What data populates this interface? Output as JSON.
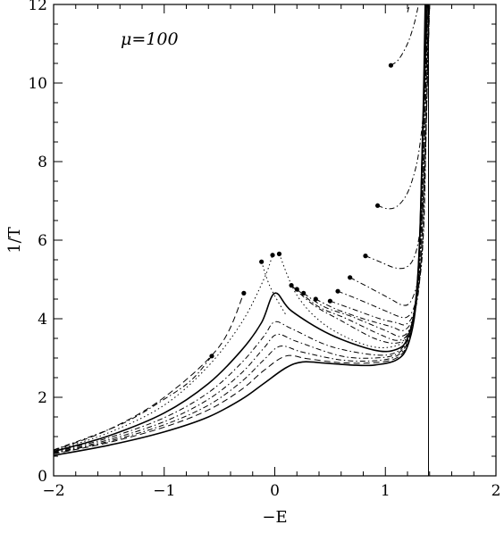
{
  "chart_data": {
    "type": "line",
    "title": "",
    "xlabel": "−E",
    "ylabel": "1/T",
    "annotation": "μ=100",
    "xlim": [
      -2,
      2
    ],
    "ylim": [
      0,
      12
    ],
    "x_ticks": [
      -2,
      -1,
      0,
      1,
      2
    ],
    "x_tick_labels": [
      "−2",
      "−1",
      "0",
      "1",
      "2"
    ],
    "y_ticks": [
      0,
      2,
      4,
      6,
      8,
      10,
      12
    ],
    "y_tick_labels": [
      "0",
      "2",
      "4",
      "6",
      "8",
      "10",
      "12"
    ],
    "grid": false,
    "reference_line_x": 1.39,
    "series": [
      {
        "values": [
          [
            -2,
            0.52
          ],
          [
            -1.5,
            0.78
          ],
          [
            -1,
            1.12
          ],
          [
            -0.6,
            1.5
          ],
          [
            -0.3,
            1.95
          ],
          [
            -0.1,
            2.35
          ],
          [
            0.1,
            2.75
          ],
          [
            0.25,
            2.9
          ],
          [
            0.45,
            2.87
          ],
          [
            0.7,
            2.82
          ],
          [
            0.9,
            2.82
          ],
          [
            1.1,
            2.95
          ],
          [
            1.2,
            3.3
          ],
          [
            1.27,
            4.2
          ],
          [
            1.31,
            6
          ],
          [
            1.34,
            9
          ],
          [
            1.36,
            12
          ]
        ],
        "style": "solid",
        "width": 1.6
      },
      {
        "values": [
          [
            -2,
            0.56
          ],
          [
            -1.5,
            0.85
          ],
          [
            -1,
            1.24
          ],
          [
            -0.6,
            1.68
          ],
          [
            -0.3,
            2.2
          ],
          [
            -0.1,
            2.68
          ],
          [
            0.1,
            3.05
          ],
          [
            0.3,
            2.98
          ],
          [
            0.6,
            2.88
          ],
          [
            0.9,
            2.88
          ],
          [
            1.1,
            3.0
          ],
          [
            1.2,
            3.35
          ],
          [
            1.27,
            4.2
          ],
          [
            1.31,
            6
          ],
          [
            1.34,
            9
          ],
          [
            1.36,
            12
          ]
        ],
        "style": "dashed",
        "width": 1
      },
      {
        "values": [
          [
            -2,
            0.57
          ],
          [
            -1.5,
            0.88
          ],
          [
            -1,
            1.3
          ],
          [
            -0.6,
            1.8
          ],
          [
            -0.3,
            2.4
          ],
          [
            -0.1,
            2.95
          ],
          [
            0.05,
            3.3
          ],
          [
            0.25,
            3.15
          ],
          [
            0.6,
            2.95
          ],
          [
            0.9,
            2.93
          ],
          [
            1.1,
            3.05
          ],
          [
            1.2,
            3.4
          ],
          [
            1.27,
            4.25
          ],
          [
            1.31,
            6
          ],
          [
            1.34,
            9
          ],
          [
            1.37,
            12
          ]
        ],
        "style": "dashdot",
        "width": 1
      },
      {
        "values": [
          [
            -2,
            0.58
          ],
          [
            -1.5,
            0.92
          ],
          [
            -1,
            1.38
          ],
          [
            -0.6,
            1.95
          ],
          [
            -0.3,
            2.62
          ],
          [
            -0.1,
            3.25
          ],
          [
            0.02,
            3.6
          ],
          [
            0.2,
            3.42
          ],
          [
            0.6,
            3.05
          ],
          [
            0.9,
            3.0
          ],
          [
            1.1,
            3.1
          ],
          [
            1.2,
            3.45
          ],
          [
            1.27,
            4.3
          ],
          [
            1.31,
            6
          ],
          [
            1.34,
            9
          ],
          [
            1.37,
            12
          ]
        ],
        "style": "dashdot",
        "width": 1
      },
      {
        "values": [
          [
            -2,
            0.6
          ],
          [
            -1.5,
            0.97
          ],
          [
            -1,
            1.48
          ],
          [
            -0.6,
            2.12
          ],
          [
            -0.3,
            2.88
          ],
          [
            -0.1,
            3.55
          ],
          [
            0.0,
            3.92
          ],
          [
            0.15,
            3.75
          ],
          [
            0.5,
            3.3
          ],
          [
            0.9,
            3.08
          ],
          [
            1.1,
            3.15
          ],
          [
            1.2,
            3.5
          ],
          [
            1.27,
            4.35
          ],
          [
            1.31,
            6
          ],
          [
            1.34,
            9
          ],
          [
            1.37,
            12
          ]
        ],
        "style": "dashdot",
        "width": 1
      },
      {
        "values": [
          [
            -2,
            0.62
          ],
          [
            -1.5,
            1.02
          ],
          [
            -1,
            1.6
          ],
          [
            -0.6,
            2.35
          ],
          [
            -0.3,
            3.2
          ],
          [
            -0.12,
            3.9
          ],
          [
            0.0,
            4.65
          ],
          [
            0.15,
            4.2
          ],
          [
            0.5,
            3.6
          ],
          [
            0.9,
            3.2
          ],
          [
            1.1,
            3.22
          ],
          [
            1.2,
            3.5
          ],
          [
            1.27,
            4.35
          ],
          [
            1.31,
            6
          ],
          [
            1.34,
            9
          ],
          [
            1.38,
            12
          ]
        ],
        "style": "solid",
        "width": 1.6
      },
      {
        "values": [
          [
            -2,
            0.64
          ],
          [
            -1.5,
            1.1
          ],
          [
            -1,
            1.8
          ],
          [
            -0.6,
            2.8
          ],
          [
            -0.3,
            3.9
          ],
          [
            -0.1,
            5.0
          ],
          [
            -0.02,
            5.62
          ]
        ],
        "style": "dotted",
        "width": 1,
        "end_dot": true
      },
      {
        "values": [
          [
            -2,
            0.65
          ],
          [
            -1.5,
            1.18
          ],
          [
            -1,
            2.0
          ],
          [
            -0.5,
            3.3
          ],
          [
            -0.28,
            4.65
          ]
        ],
        "style": "dashed",
        "width": 1,
        "end_dot": true
      },
      {
        "values": [
          [
            -2,
            0.66
          ],
          [
            -1.4,
            1.3
          ],
          [
            -1,
            1.95
          ],
          [
            -0.75,
            2.45
          ],
          [
            -0.57,
            3.05
          ]
        ],
        "style": "dashdot",
        "width": 1,
        "end_dot": true
      },
      {
        "values": [
          [
            -0.12,
            5.45
          ],
          [
            -0.04,
            4.8
          ],
          [
            0.1,
            4.1
          ]
        ],
        "style": "dotted",
        "width": 1,
        "end_dot": false,
        "start_dot": true
      },
      {
        "values": [
          [
            0.04,
            5.65
          ],
          [
            0.2,
            4.6
          ],
          [
            0.45,
            3.85
          ],
          [
            0.8,
            3.35
          ],
          [
            1.05,
            3.28
          ],
          [
            1.2,
            3.55
          ],
          [
            1.27,
            4.4
          ],
          [
            1.31,
            6
          ],
          [
            1.34,
            9
          ],
          [
            1.38,
            12
          ]
        ],
        "style": "dotted",
        "width": 1,
        "start_dot": true
      },
      {
        "values": [
          [
            0.15,
            4.85
          ],
          [
            0.35,
            4.35
          ],
          [
            0.6,
            3.95
          ],
          [
            0.9,
            3.5
          ],
          [
            1.1,
            3.38
          ],
          [
            1.2,
            3.6
          ],
          [
            1.28,
            4.4
          ],
          [
            1.32,
            6
          ],
          [
            1.35,
            9
          ],
          [
            1.38,
            12
          ]
        ],
        "style": "dashdot",
        "width": 1,
        "start_dot": true
      },
      {
        "values": [
          [
            0.2,
            4.75
          ],
          [
            0.4,
            4.3
          ],
          [
            0.65,
            4.0
          ],
          [
            0.95,
            3.6
          ],
          [
            1.12,
            3.45
          ],
          [
            1.22,
            3.7
          ],
          [
            1.28,
            4.5
          ],
          [
            1.32,
            6
          ],
          [
            1.35,
            9
          ],
          [
            1.38,
            12
          ]
        ],
        "style": "dashdot",
        "width": 1,
        "start_dot": true
      },
      {
        "values": [
          [
            0.26,
            4.65
          ],
          [
            0.45,
            4.3
          ],
          [
            0.7,
            4.05
          ],
          [
            1.0,
            3.7
          ],
          [
            1.14,
            3.55
          ],
          [
            1.23,
            3.8
          ],
          [
            1.29,
            4.6
          ],
          [
            1.33,
            6
          ],
          [
            1.36,
            9
          ],
          [
            1.38,
            12
          ]
        ],
        "style": "dashdot",
        "width": 1,
        "start_dot": true
      },
      {
        "values": [
          [
            0.37,
            4.5
          ],
          [
            0.55,
            4.25
          ],
          [
            0.8,
            4.0
          ],
          [
            1.05,
            3.8
          ],
          [
            1.16,
            3.7
          ],
          [
            1.24,
            3.95
          ],
          [
            1.3,
            4.7
          ],
          [
            1.33,
            6
          ],
          [
            1.36,
            9
          ],
          [
            1.39,
            12
          ]
        ],
        "style": "dashdot",
        "width": 1,
        "start_dot": true
      },
      {
        "values": [
          [
            0.5,
            4.45
          ],
          [
            0.7,
            4.25
          ],
          [
            0.95,
            4.0
          ],
          [
            1.1,
            3.9
          ],
          [
            1.18,
            3.85
          ],
          [
            1.25,
            4.1
          ],
          [
            1.3,
            4.8
          ],
          [
            1.34,
            6
          ],
          [
            1.37,
            9
          ],
          [
            1.39,
            12
          ]
        ],
        "style": "dashdot",
        "width": 1,
        "start_dot": true
      },
      {
        "values": [
          [
            0.57,
            4.7
          ],
          [
            0.75,
            4.5
          ],
          [
            1.0,
            4.2
          ],
          [
            1.13,
            4.05
          ],
          [
            1.2,
            4.05
          ],
          [
            1.26,
            4.3
          ],
          [
            1.31,
            5.0
          ],
          [
            1.34,
            6
          ],
          [
            1.37,
            9
          ],
          [
            1.39,
            12
          ]
        ],
        "style": "dashdot",
        "width": 1,
        "start_dot": true
      },
      {
        "values": [
          [
            0.68,
            5.05
          ],
          [
            0.85,
            4.8
          ],
          [
            1.05,
            4.5
          ],
          [
            1.15,
            4.35
          ],
          [
            1.22,
            4.4
          ],
          [
            1.28,
            4.8
          ],
          [
            1.32,
            5.4
          ],
          [
            1.35,
            6.5
          ],
          [
            1.37,
            9
          ],
          [
            1.4,
            12
          ]
        ],
        "style": "dashdot",
        "width": 1,
        "start_dot": true
      },
      {
        "values": [
          [
            0.82,
            5.6
          ],
          [
            0.95,
            5.45
          ],
          [
            1.08,
            5.3
          ],
          [
            1.18,
            5.3
          ],
          [
            1.25,
            5.5
          ],
          [
            1.3,
            6.0
          ],
          [
            1.34,
            7
          ],
          [
            1.37,
            9
          ],
          [
            1.4,
            12
          ]
        ],
        "style": "dashdot",
        "width": 1,
        "start_dot": true
      },
      {
        "values": [
          [
            0.93,
            6.88
          ],
          [
            1.02,
            6.8
          ],
          [
            1.1,
            6.85
          ],
          [
            1.18,
            7.1
          ],
          [
            1.24,
            7.5
          ],
          [
            1.3,
            8.2
          ],
          [
            1.35,
            9.5
          ],
          [
            1.4,
            12
          ]
        ],
        "style": "dashdot",
        "width": 1,
        "start_dot": true
      },
      {
        "values": [
          [
            1.05,
            10.45
          ],
          [
            1.12,
            10.6
          ],
          [
            1.2,
            11.0
          ],
          [
            1.26,
            11.5
          ],
          [
            1.3,
            12
          ]
        ],
        "style": "dashdot",
        "width": 1,
        "start_dot": true
      },
      {
        "values": [
          [
            1.2,
            11.8
          ],
          [
            1.22,
            12
          ]
        ],
        "style": "dashdot",
        "width": 1
      }
    ]
  }
}
